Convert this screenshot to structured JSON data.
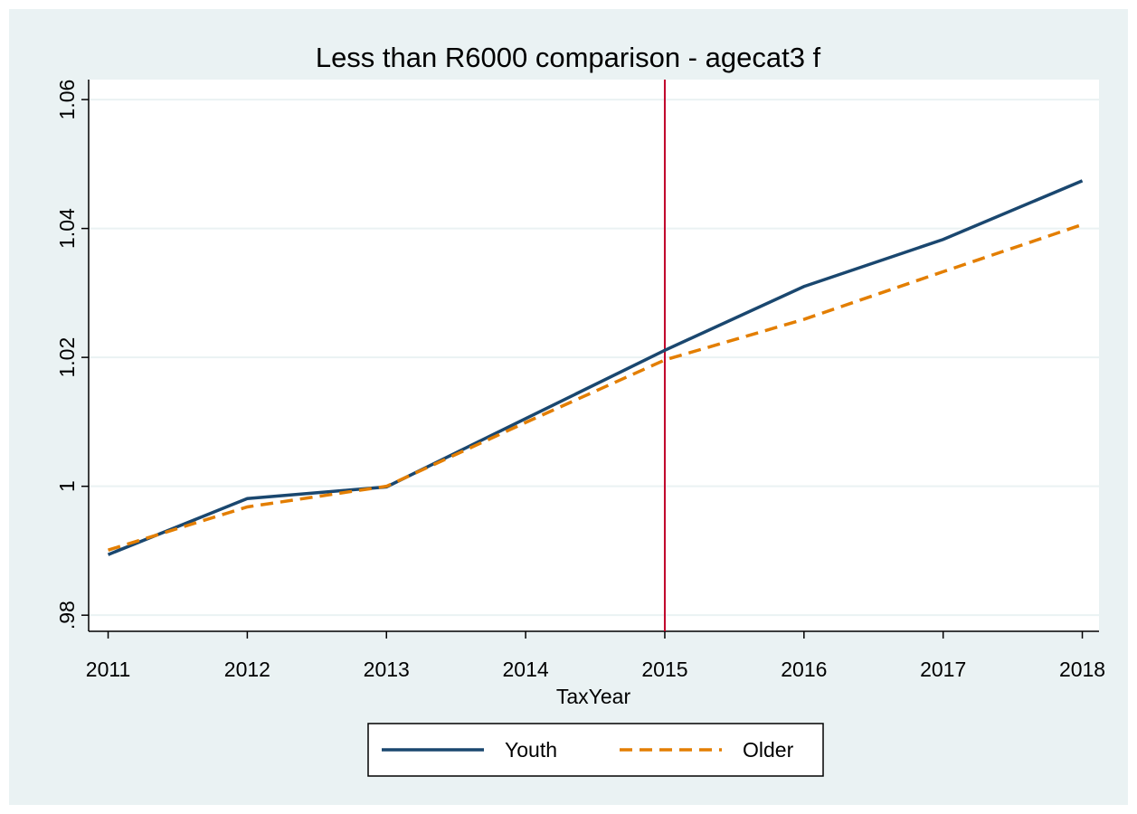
{
  "chart_data": {
    "type": "line",
    "title": "Less than R6000 comparison - agecat3 f",
    "x_label": "TaxYear",
    "x": [
      2011,
      2012,
      2013,
      2014,
      2015,
      2016,
      2017,
      2018
    ],
    "series": [
      {
        "name": "Youth",
        "color": "#1a476f",
        "dash": "solid",
        "values": [
          0.9894,
          0.9981,
          0.9999,
          1.0105,
          1.0211,
          1.031,
          1.0383,
          1.0474
        ]
      },
      {
        "name": "Older",
        "color": "#e37e00",
        "dash": "dashed",
        "values": [
          0.9901,
          0.9968,
          1.0,
          1.0099,
          1.0196,
          1.0259,
          1.0333,
          1.0406
        ]
      }
    ],
    "xlim": [
      2010.86,
      2018.12
    ],
    "xticks": [
      2011,
      2012,
      2013,
      2014,
      2015,
      2016,
      2017,
      2018
    ],
    "ylim": [
      0.9775,
      1.0631
    ],
    "yticks": [
      {
        "value": 0.98,
        "label": ".98"
      },
      1,
      1.02,
      1.04,
      1.06
    ],
    "grid": true,
    "xline": {
      "value": 2015,
      "color": "#c0002a"
    },
    "legend": "bottom"
  }
}
